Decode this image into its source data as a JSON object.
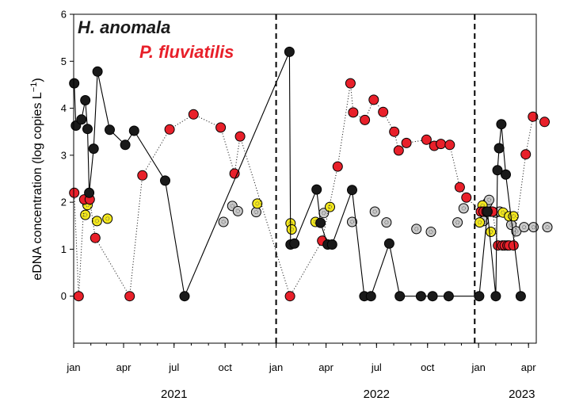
{
  "chart_data": {
    "type": "scatter",
    "ylabel": "eDNA concentration (log copies L",
    "ylabel_superscript": "−1",
    "ylabel_close": ")",
    "ylim": [
      -1,
      6
    ],
    "yticks": [
      0,
      1,
      2,
      3,
      4,
      5,
      6
    ],
    "xlim": [
      "2021-01-01",
      "2023-04-15"
    ],
    "month_ticks": [
      {
        "date": "2021-01-01",
        "label": "jan"
      },
      {
        "date": "2021-04-01",
        "label": "apr"
      },
      {
        "date": "2021-07-01",
        "label": "jul"
      },
      {
        "date": "2021-10-01",
        "label": "oct"
      },
      {
        "date": "2022-01-01",
        "label": "jan"
      },
      {
        "date": "2022-04-01",
        "label": "apr"
      },
      {
        "date": "2022-07-01",
        "label": "jul"
      },
      {
        "date": "2022-10-01",
        "label": "oct"
      },
      {
        "date": "2023-01-01",
        "label": "jan"
      },
      {
        "date": "2023-04-01",
        "label": "apr"
      }
    ],
    "year_labels": [
      {
        "date": "2021-07-01",
        "label": "2021"
      },
      {
        "date": "2022-07-01",
        "label": "2022"
      },
      {
        "date": "2023-03-20",
        "label": "2023"
      }
    ],
    "dashed_verticals": [
      "2022-01-01",
      "2022-12-25"
    ],
    "legend": [
      {
        "label": "H. anomala",
        "color": "#1a1a1a"
      },
      {
        "label": "P. fluviatilis",
        "color": "#e8202a"
      }
    ],
    "series": [
      {
        "name": "H. anomala",
        "color": "#1a1a1a",
        "line": "solid",
        "points": [
          [
            "2021-01-02",
            4.53
          ],
          [
            "2021-01-05",
            3.63
          ],
          [
            "2021-01-15",
            3.76
          ],
          [
            "2021-01-22",
            4.17
          ],
          [
            "2021-01-26",
            3.56
          ],
          [
            "2021-01-29",
            2.2
          ],
          [
            "2021-02-06",
            3.14
          ],
          [
            "2021-02-13",
            4.78
          ],
          [
            "2021-03-07",
            3.54
          ],
          [
            "2021-04-04",
            3.22
          ],
          [
            "2021-04-20",
            3.52
          ],
          [
            "2021-06-15",
            2.46
          ],
          [
            "2021-07-20",
            0
          ],
          [
            "2022-01-25",
            5.2
          ],
          [
            "2022-01-27",
            1.1
          ],
          [
            "2022-02-03",
            1.12
          ],
          [
            "2022-03-15",
            2.27
          ],
          [
            "2022-03-22",
            1.56
          ],
          [
            "2022-04-04",
            1.1
          ],
          [
            "2022-04-12",
            1.1
          ],
          [
            "2022-05-18",
            2.26
          ],
          [
            "2022-06-09",
            0
          ],
          [
            "2022-06-21",
            0
          ],
          [
            "2022-07-24",
            1.12
          ],
          [
            "2022-08-12",
            0
          ],
          [
            "2022-09-19",
            0
          ],
          [
            "2022-10-10",
            0
          ],
          [
            "2022-11-08",
            0
          ],
          [
            "2023-01-02",
            0
          ],
          [
            "2023-01-17",
            1.8
          ],
          [
            "2023-02-01",
            0
          ],
          [
            "2023-02-04",
            2.68
          ],
          [
            "2023-02-07",
            3.15
          ],
          [
            "2023-02-11",
            3.66
          ],
          [
            "2023-02-19",
            2.59
          ],
          [
            "2023-03-18",
            0
          ]
        ]
      },
      {
        "name": "P. fluviatilis",
        "color": "#e8202a",
        "line": "dotted",
        "points": [
          [
            "2021-01-02",
            2.2
          ],
          [
            "2021-01-10",
            0
          ],
          [
            "2021-01-20",
            2.06
          ],
          [
            "2021-01-30",
            2.06
          ],
          [
            "2021-02-09",
            1.24
          ],
          [
            "2021-04-12",
            0
          ],
          [
            "2021-05-05",
            2.57
          ],
          [
            "2021-06-23",
            3.55
          ],
          [
            "2021-08-05",
            3.87
          ],
          [
            "2021-09-23",
            3.59
          ],
          [
            "2021-10-18",
            2.61
          ],
          [
            "2021-10-28",
            3.4
          ],
          [
            "2022-01-26",
            0
          ],
          [
            "2022-03-25",
            1.18
          ],
          [
            "2022-04-22",
            2.76
          ],
          [
            "2022-05-15",
            4.53
          ],
          [
            "2022-05-20",
            3.91
          ],
          [
            "2022-06-10",
            3.75
          ],
          [
            "2022-06-26",
            4.18
          ],
          [
            "2022-07-13",
            3.92
          ],
          [
            "2022-08-02",
            3.5
          ],
          [
            "2022-08-10",
            3.1
          ],
          [
            "2022-08-24",
            3.26
          ],
          [
            "2022-09-29",
            3.33
          ],
          [
            "2022-10-13",
            3.2
          ],
          [
            "2022-10-25",
            3.24
          ],
          [
            "2022-11-10",
            3.22
          ],
          [
            "2022-11-28",
            2.32
          ],
          [
            "2022-12-10",
            2.1
          ],
          [
            "2023-01-05",
            1.8
          ],
          [
            "2023-01-10",
            1.8
          ],
          [
            "2023-01-15",
            1.8
          ],
          [
            "2023-01-22",
            1.8
          ],
          [
            "2023-01-26",
            1.8
          ],
          [
            "2023-02-05",
            1.08
          ],
          [
            "2023-02-13",
            1.08
          ],
          [
            "2023-02-17",
            1.08
          ],
          [
            "2023-02-22",
            1.08
          ],
          [
            "2023-02-25",
            1.08
          ],
          [
            "2023-03-05",
            1.08
          ],
          [
            "2023-03-27",
            3.02
          ],
          [
            "2023-04-09",
            3.82
          ],
          [
            "2023-04-30",
            3.71
          ]
        ]
      },
      {
        "name": "",
        "color": "#c9c9c9",
        "line": "none",
        "points": [
          [
            "2021-09-28",
            1.58
          ],
          [
            "2021-10-14",
            1.92
          ],
          [
            "2021-10-24",
            1.81
          ],
          [
            "2021-11-26",
            1.79
          ],
          [
            "2022-03-28",
            1.77
          ],
          [
            "2022-05-18",
            1.58
          ],
          [
            "2022-06-28",
            1.8
          ],
          [
            "2022-07-19",
            1.57
          ],
          [
            "2022-09-11",
            1.43
          ],
          [
            "2022-10-07",
            1.37
          ],
          [
            "2022-11-24",
            1.57
          ],
          [
            "2022-12-05",
            1.87
          ],
          [
            "2023-01-10",
            1.6
          ],
          [
            "2023-01-17",
            1.99
          ],
          [
            "2023-01-20",
            2.05
          ],
          [
            "2023-02-01",
            1.78
          ],
          [
            "2023-02-08",
            1.8
          ],
          [
            "2023-03-01",
            1.52
          ],
          [
            "2023-03-10",
            1.38
          ],
          [
            "2023-03-24",
            1.47
          ],
          [
            "2023-04-10",
            1.47
          ],
          [
            "2023-05-05",
            1.47
          ]
        ]
      },
      {
        "name": "",
        "color": "#f4e81c",
        "line": "none",
        "points": [
          [
            "2021-01-22",
            1.73
          ],
          [
            "2021-01-26",
            1.94
          ],
          [
            "2021-02-12",
            1.6
          ],
          [
            "2021-03-03",
            1.65
          ],
          [
            "2021-11-28",
            1.97
          ],
          [
            "2022-01-27",
            1.55
          ],
          [
            "2022-01-29",
            1.42
          ],
          [
            "2022-03-13",
            1.58
          ],
          [
            "2022-04-08",
            1.9
          ],
          [
            "2023-01-03",
            1.57
          ],
          [
            "2023-01-08",
            1.93
          ],
          [
            "2023-01-23",
            1.37
          ],
          [
            "2023-02-14",
            1.78
          ],
          [
            "2023-02-25",
            1.7
          ],
          [
            "2023-03-05",
            1.7
          ]
        ]
      }
    ]
  }
}
